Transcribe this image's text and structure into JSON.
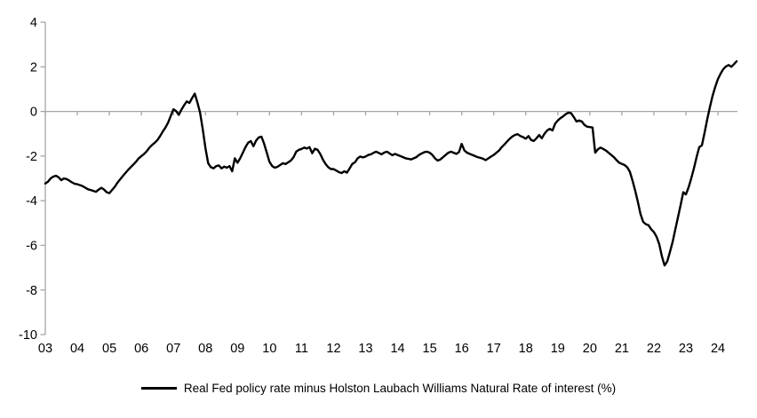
{
  "chart_data": {
    "type": "line",
    "title": "",
    "xlabel": "",
    "ylabel": "",
    "grid": false,
    "legend_position": "bottom-center",
    "background_color": "#ffffff",
    "axis_color": "#a6a6a6",
    "text_color": "#000000",
    "ylim": [
      -10,
      4
    ],
    "y_ticks": [
      4,
      2,
      0,
      -2,
      -4,
      -6,
      -8,
      -10
    ],
    "x_tick_labels": [
      "03",
      "04",
      "05",
      "06",
      "07",
      "08",
      "09",
      "10",
      "11",
      "12",
      "13",
      "14",
      "15",
      "16",
      "17",
      "18",
      "19",
      "20",
      "21",
      "22",
      "23",
      "24"
    ],
    "x_range_note": "monthly data, Jan 2003 through Aug 2024",
    "x_start_year": 2003,
    "points_per_year": 12,
    "series": [
      {
        "name": "Real Fed policy rate minus Holston Laubach Williams Natural Rate of interest (%)",
        "color": "#000000",
        "values": [
          -3.23,
          -3.15,
          -3.0,
          -2.92,
          -2.88,
          -2.95,
          -3.08,
          -3.0,
          -3.03,
          -3.1,
          -3.18,
          -3.24,
          -3.26,
          -3.3,
          -3.35,
          -3.42,
          -3.49,
          -3.52,
          -3.56,
          -3.6,
          -3.5,
          -3.42,
          -3.5,
          -3.62,
          -3.66,
          -3.52,
          -3.38,
          -3.2,
          -3.05,
          -2.9,
          -2.76,
          -2.62,
          -2.5,
          -2.38,
          -2.25,
          -2.1,
          -2.0,
          -1.9,
          -1.78,
          -1.62,
          -1.5,
          -1.4,
          -1.28,
          -1.1,
          -0.9,
          -0.72,
          -0.5,
          -0.2,
          0.1,
          0.02,
          -0.15,
          0.08,
          0.28,
          0.45,
          0.38,
          0.6,
          0.8,
          0.4,
          -0.06,
          -0.8,
          -1.66,
          -2.32,
          -2.5,
          -2.55,
          -2.45,
          -2.42,
          -2.55,
          -2.47,
          -2.52,
          -2.45,
          -2.68,
          -2.1,
          -2.3,
          -2.1,
          -1.85,
          -1.6,
          -1.4,
          -1.33,
          -1.56,
          -1.3,
          -1.16,
          -1.13,
          -1.45,
          -1.85,
          -2.26,
          -2.45,
          -2.52,
          -2.48,
          -2.4,
          -2.32,
          -2.36,
          -2.28,
          -2.2,
          -2.05,
          -1.8,
          -1.72,
          -1.68,
          -1.62,
          -1.66,
          -1.6,
          -1.87,
          -1.67,
          -1.72,
          -1.9,
          -2.15,
          -2.35,
          -2.5,
          -2.58,
          -2.58,
          -2.65,
          -2.72,
          -2.76,
          -2.68,
          -2.74,
          -2.55,
          -2.35,
          -2.28,
          -2.1,
          -2.02,
          -2.06,
          -2.02,
          -1.95,
          -1.92,
          -1.85,
          -1.8,
          -1.86,
          -1.92,
          -1.84,
          -1.8,
          -1.88,
          -1.96,
          -1.9,
          -1.95,
          -2.0,
          -2.05,
          -2.1,
          -2.12,
          -2.15,
          -2.1,
          -2.05,
          -1.95,
          -1.88,
          -1.82,
          -1.8,
          -1.85,
          -1.95,
          -2.1,
          -2.2,
          -2.15,
          -2.05,
          -1.95,
          -1.85,
          -1.8,
          -1.85,
          -1.9,
          -1.82,
          -1.45,
          -1.75,
          -1.85,
          -1.9,
          -1.95,
          -2.0,
          -2.05,
          -2.08,
          -2.12,
          -2.18,
          -2.1,
          -2.02,
          -1.95,
          -1.85,
          -1.75,
          -1.6,
          -1.48,
          -1.35,
          -1.22,
          -1.12,
          -1.05,
          -1.02,
          -1.1,
          -1.15,
          -1.22,
          -1.1,
          -1.28,
          -1.32,
          -1.2,
          -1.06,
          -1.2,
          -1.0,
          -0.85,
          -0.78,
          -0.85,
          -0.55,
          -0.4,
          -0.3,
          -0.22,
          -0.12,
          -0.05,
          -0.08,
          -0.25,
          -0.45,
          -0.4,
          -0.45,
          -0.6,
          -0.68,
          -0.7,
          -0.72,
          -1.85,
          -1.7,
          -1.62,
          -1.68,
          -1.75,
          -1.85,
          -1.95,
          -2.05,
          -2.18,
          -2.3,
          -2.35,
          -2.4,
          -2.5,
          -2.7,
          -3.1,
          -3.55,
          -4.05,
          -4.6,
          -4.95,
          -5.05,
          -5.1,
          -5.28,
          -5.4,
          -5.62,
          -5.95,
          -6.5,
          -6.9,
          -6.72,
          -6.3,
          -5.85,
          -5.3,
          -4.75,
          -4.2,
          -3.62,
          -3.72,
          -3.4,
          -3.0,
          -2.55,
          -2.05,
          -1.6,
          -1.52,
          -0.95,
          -0.35,
          0.2,
          0.7,
          1.1,
          1.45,
          1.7,
          1.9,
          2.02,
          2.08,
          2.0,
          2.12,
          2.25
        ]
      }
    ]
  }
}
